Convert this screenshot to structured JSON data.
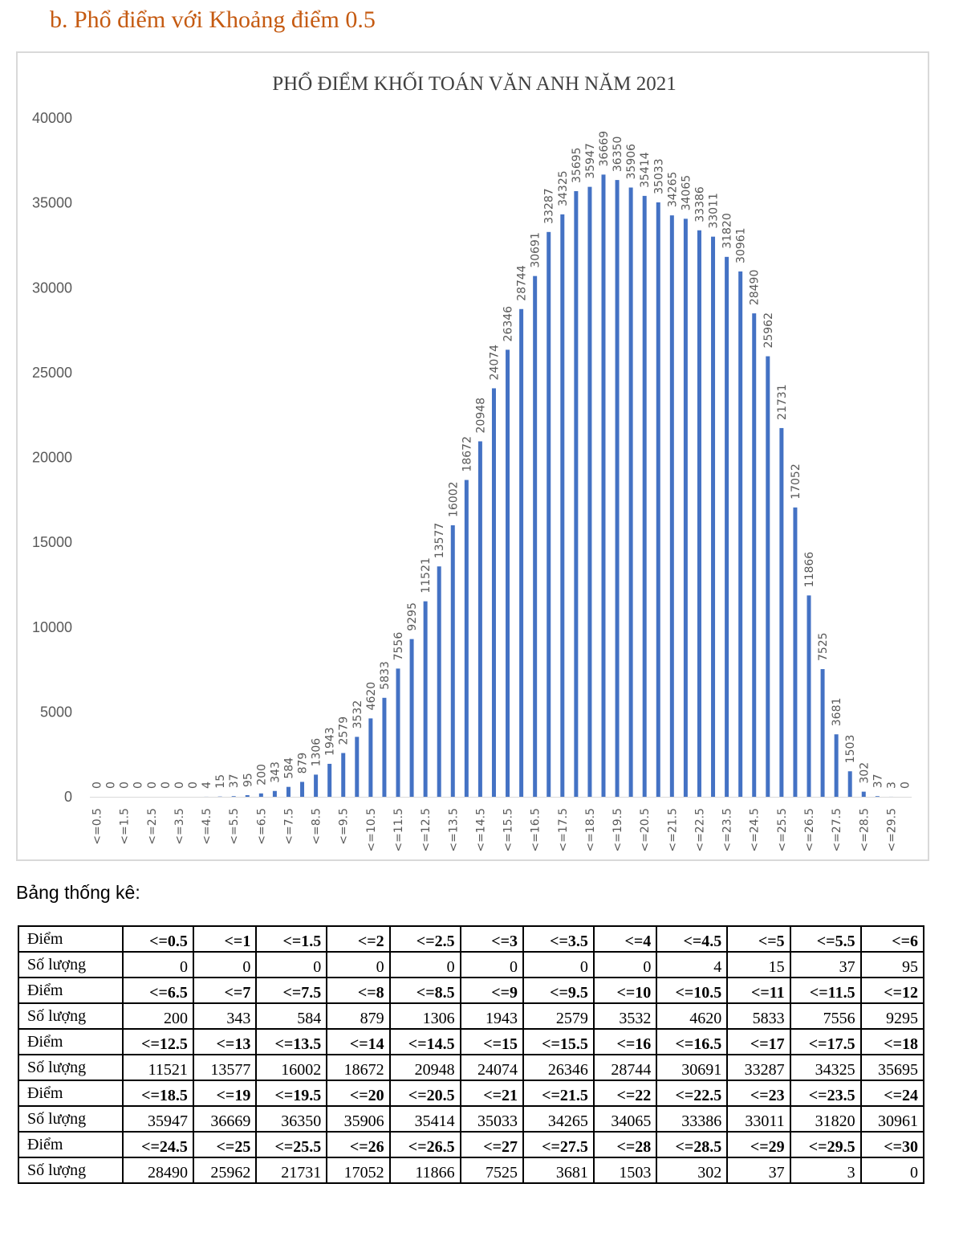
{
  "heading": "b.  Phổ điểm với Khoảng điểm 0.5",
  "stats_label": "Bảng thống kê:",
  "colors": {
    "bar": "#4472c4",
    "heading": "#c55a11",
    "axis_text": "#595959",
    "grid": "#d9d9d9"
  },
  "chart_data": {
    "type": "bar",
    "title": "PHỔ ĐIỂM KHỐI TOÁN VĂN ANH  NĂM 2021",
    "xlabel": "",
    "ylabel": "",
    "ylim": [
      0,
      40000
    ],
    "yticks": [
      "0",
      "5000",
      "10000",
      "15000",
      "20000",
      "25000",
      "30000",
      "35000",
      "40000"
    ],
    "grid": false,
    "legend": "none",
    "categories": [
      "<=0.5",
      "<=1",
      "<=1.5",
      "<=2",
      "<=2.5",
      "<=3",
      "<=3.5",
      "<=4",
      "<=4.5",
      "<=5",
      "<=5.5",
      "<=6",
      "<=6.5",
      "<=7",
      "<=7.5",
      "<=8",
      "<=8.5",
      "<=9",
      "<=9.5",
      "<=10",
      "<=10.5",
      "<=11",
      "<=11.5",
      "<=12",
      "<=12.5",
      "<=13",
      "<=13.5",
      "<=14",
      "<=14.5",
      "<=15",
      "<=15.5",
      "<=16",
      "<=16.5",
      "<=17",
      "<=17.5",
      "<=18",
      "<=18.5",
      "<=19",
      "<=19.5",
      "<=20",
      "<=20.5",
      "<=21",
      "<=21.5",
      "<=22",
      "<=22.5",
      "<=23",
      "<=23.5",
      "<=24",
      "<=24.5",
      "<=25",
      "<=25.5",
      "<=26",
      "<=26.5",
      "<=27",
      "<=27.5",
      "<=28",
      "<=28.5",
      "<=29",
      "<=29.5",
      "<=30"
    ],
    "tick_labels": [
      "<=0.5",
      "<=1.5",
      "<=2.5",
      "<=3.5",
      "<=4.5",
      "<=5.5",
      "<=6.5",
      "<=7.5",
      "<=8.5",
      "<=9.5",
      "<=10.5",
      "<=11.5",
      "<=12.5",
      "<=13.5",
      "<=14.5",
      "<=15.5",
      "<=16.5",
      "<=17.5",
      "<=18.5",
      "<=19.5",
      "<=20.5",
      "<=21.5",
      "<=22.5",
      "<=23.5",
      "<=24.5",
      "<=25.5",
      "<=26.5",
      "<=27.5",
      "<=28.5",
      "<=29.5"
    ],
    "values": [
      0,
      0,
      0,
      0,
      0,
      0,
      0,
      0,
      4,
      15,
      37,
      95,
      200,
      343,
      584,
      879,
      1306,
      1943,
      2579,
      3532,
      4620,
      5833,
      7556,
      9295,
      11521,
      13577,
      16002,
      18672,
      20948,
      24074,
      26346,
      28744,
      30691,
      33287,
      34325,
      35695,
      35947,
      36669,
      36350,
      35906,
      35414,
      35033,
      34265,
      34065,
      33386,
      33011,
      31820,
      30961,
      28490,
      25962,
      21731,
      17052,
      11866,
      7525,
      3681,
      1503,
      302,
      37,
      3,
      0
    ]
  },
  "table": {
    "score_label": "Điểm",
    "count_label": "Số lượng",
    "blocks": [
      {
        "scores": [
          "<=0.5",
          "<=1",
          "<=1.5",
          "<=2",
          "<=2.5",
          "<=3",
          "<=3.5",
          "<=4",
          "<=4.5",
          "<=5",
          "<=5.5",
          "<=6"
        ],
        "counts": [
          "0",
          "0",
          "0",
          "0",
          "0",
          "0",
          "0",
          "0",
          "4",
          "15",
          "37",
          "95"
        ]
      },
      {
        "scores": [
          "<=6.5",
          "<=7",
          "<=7.5",
          "<=8",
          "<=8.5",
          "<=9",
          "<=9.5",
          "<=10",
          "<=10.5",
          "<=11",
          "<=11.5",
          "<=12"
        ],
        "counts": [
          "200",
          "343",
          "584",
          "879",
          "1306",
          "1943",
          "2579",
          "3532",
          "4620",
          "5833",
          "7556",
          "9295"
        ]
      },
      {
        "scores": [
          "<=12.5",
          "<=13",
          "<=13.5",
          "<=14",
          "<=14.5",
          "<=15",
          "<=15.5",
          "<=16",
          "<=16.5",
          "<=17",
          "<=17.5",
          "<=18"
        ],
        "counts": [
          "11521",
          "13577",
          "16002",
          "18672",
          "20948",
          "24074",
          "26346",
          "28744",
          "30691",
          "33287",
          "34325",
          "35695"
        ]
      },
      {
        "scores": [
          "<=18.5",
          "<=19",
          "<=19.5",
          "<=20",
          "<=20.5",
          "<=21",
          "<=21.5",
          "<=22",
          "<=22.5",
          "<=23",
          "<=23.5",
          "<=24"
        ],
        "counts": [
          "35947",
          "36669",
          "36350",
          "35906",
          "35414",
          "35033",
          "34265",
          "34065",
          "33386",
          "33011",
          "31820",
          "30961"
        ]
      },
      {
        "scores": [
          "<=24.5",
          "<=25",
          "<=25.5",
          "<=26",
          "<=26.5",
          "<=27",
          "<=27.5",
          "<=28",
          "<=28.5",
          "<=29",
          "<=29.5",
          "<=30"
        ],
        "counts": [
          "28490",
          "25962",
          "21731",
          "17052",
          "11866",
          "7525",
          "3681",
          "1503",
          "302",
          "37",
          "3",
          "0"
        ]
      }
    ]
  }
}
